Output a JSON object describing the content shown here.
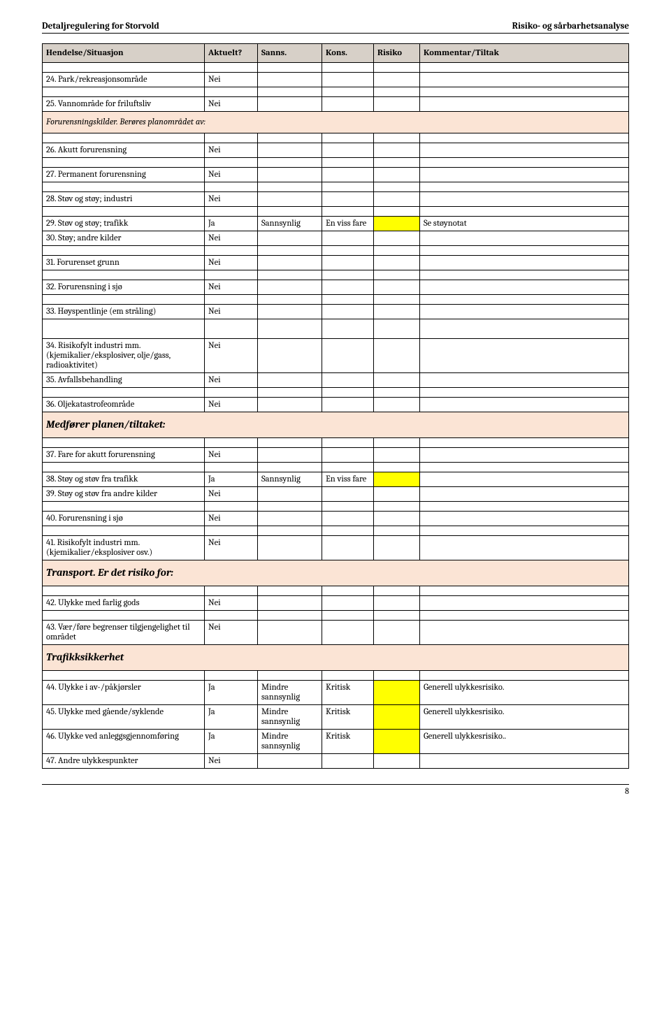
{
  "header": {
    "left": "Detaljregulering for Storvold",
    "right": "Risiko- og sårbarhetsanalyse"
  },
  "table": {
    "background_colors": {
      "header": "#d7d0c8",
      "section": "#fbe4d5",
      "risk_highlight": "#ffff00"
    },
    "columns": [
      "Hendelse/Situasjon",
      "Aktuelt?",
      "Sanns.",
      "Kons.",
      "Risiko",
      "Kommentar/Tiltak"
    ],
    "rows": [
      {
        "t": "data",
        "c": [
          "24. Park/rekreasjonsområde",
          "Nei",
          "",
          "",
          "",
          ""
        ]
      },
      {
        "t": "spacer"
      },
      {
        "t": "data",
        "c": [
          "25. Vannområde for friluftsliv",
          "Nei",
          "",
          "",
          "",
          ""
        ]
      },
      {
        "t": "sub",
        "label": "Forurensningskilder. Berøres planområdet av:"
      },
      {
        "t": "data",
        "c": [
          "26. Akutt forurensning",
          "Nei",
          "",
          "",
          "",
          ""
        ]
      },
      {
        "t": "spacer"
      },
      {
        "t": "data",
        "c": [
          "27. Permanent forurensning",
          "Nei",
          "",
          "",
          "",
          ""
        ]
      },
      {
        "t": "spacer"
      },
      {
        "t": "data",
        "c": [
          "28. Støv og støy; industri",
          "Nei",
          "",
          "",
          "",
          ""
        ]
      },
      {
        "t": "spacer"
      },
      {
        "t": "data",
        "c": [
          "29. Støv og støy; trafikk",
          "Ja",
          "Sannsynlig",
          "En viss fare",
          "",
          "Se støynotat"
        ],
        "yellow": true
      },
      {
        "t": "data",
        "c": [
          "30. Støy; andre kilder",
          "Nei",
          "",
          "",
          "",
          ""
        ]
      },
      {
        "t": "spacer"
      },
      {
        "t": "data",
        "c": [
          "31. Forurenset grunn",
          "Nei",
          "",
          "",
          "",
          ""
        ]
      },
      {
        "t": "spacer"
      },
      {
        "t": "data",
        "c": [
          "32. Forurensning i sjø",
          "Nei",
          "",
          "",
          "",
          ""
        ]
      },
      {
        "t": "spacer"
      },
      {
        "t": "data",
        "c": [
          "33. Høyspentlinje (em stråling)",
          "Nei",
          "",
          "",
          "",
          ""
        ]
      },
      {
        "t": "spacer"
      },
      {
        "t": "spacer"
      },
      {
        "t": "data",
        "c": [
          "34. Risikofylt industri mm. (kjemikalier/eksplosiver, olje/gass, radioaktivitet)",
          "Nei",
          "",
          "",
          "",
          ""
        ]
      },
      {
        "t": "data",
        "c": [
          "35. Avfallsbehandling",
          "Nei",
          "",
          "",
          "",
          ""
        ]
      },
      {
        "t": "spacer"
      },
      {
        "t": "data",
        "c": [
          "36. Oljekatastrofeområde",
          "Nei",
          "",
          "",
          "",
          ""
        ]
      },
      {
        "t": "section",
        "label": "Medfører planen/tiltaket:"
      },
      {
        "t": "data",
        "c": [
          "37. Fare for akutt forurensning",
          "Nei",
          "",
          "",
          "",
          ""
        ]
      },
      {
        "t": "spacer"
      },
      {
        "t": "data",
        "c": [
          "38. Støy og støv fra trafikk",
          "Ja",
          "Sannsynlig",
          "En viss fare",
          "",
          ""
        ],
        "yellow": true
      },
      {
        "t": "data",
        "c": [
          "39. Støy og støv fra andre kilder",
          "Nei",
          "",
          "",
          "",
          ""
        ]
      },
      {
        "t": "spacer"
      },
      {
        "t": "data",
        "c": [
          "40. Forurensning i sjø",
          "Nei",
          "",
          "",
          "",
          ""
        ]
      },
      {
        "t": "spacer"
      },
      {
        "t": "data",
        "c": [
          "41. Risikofylt industri mm. (kjemikalier/eksplosiver osv.)",
          "Nei",
          "",
          "",
          "",
          ""
        ]
      },
      {
        "t": "section",
        "label": "Transport. Er det risiko for:"
      },
      {
        "t": "data",
        "c": [
          "42. Ulykke med farlig gods",
          "Nei",
          "",
          "",
          "",
          ""
        ]
      },
      {
        "t": "spacer"
      },
      {
        "t": "data",
        "c": [
          "43. Vær/føre begrenser tilgjengelighet til området",
          "Nei",
          "",
          "",
          "",
          ""
        ]
      },
      {
        "t": "section",
        "label": "Trafikksikkerhet"
      },
      {
        "t": "data",
        "c": [
          "44. Ulykke i av-/påkjørsler",
          "Ja",
          "Mindre sannsynlig",
          "Kritisk",
          "",
          "Generell ulykkesrisiko."
        ],
        "yellow": true
      },
      {
        "t": "data",
        "c": [
          "45. Ulykke med gående/syklende",
          "Ja",
          "Mindre sannsynlig",
          "Kritisk",
          "",
          "Generell ulykkesrisiko."
        ],
        "yellow": true
      },
      {
        "t": "data",
        "c": [
          "46. Ulykke ved anleggsgjennomføring",
          "Ja",
          "Mindre sannsynlig",
          "Kritisk",
          "",
          "Generell ulykkesrisiko.."
        ],
        "yellow": true
      },
      {
        "t": "data",
        "c": [
          "47. Andre ulykkespunkter",
          "Nei",
          "",
          "",
          "",
          ""
        ]
      }
    ]
  },
  "page_number": "8"
}
